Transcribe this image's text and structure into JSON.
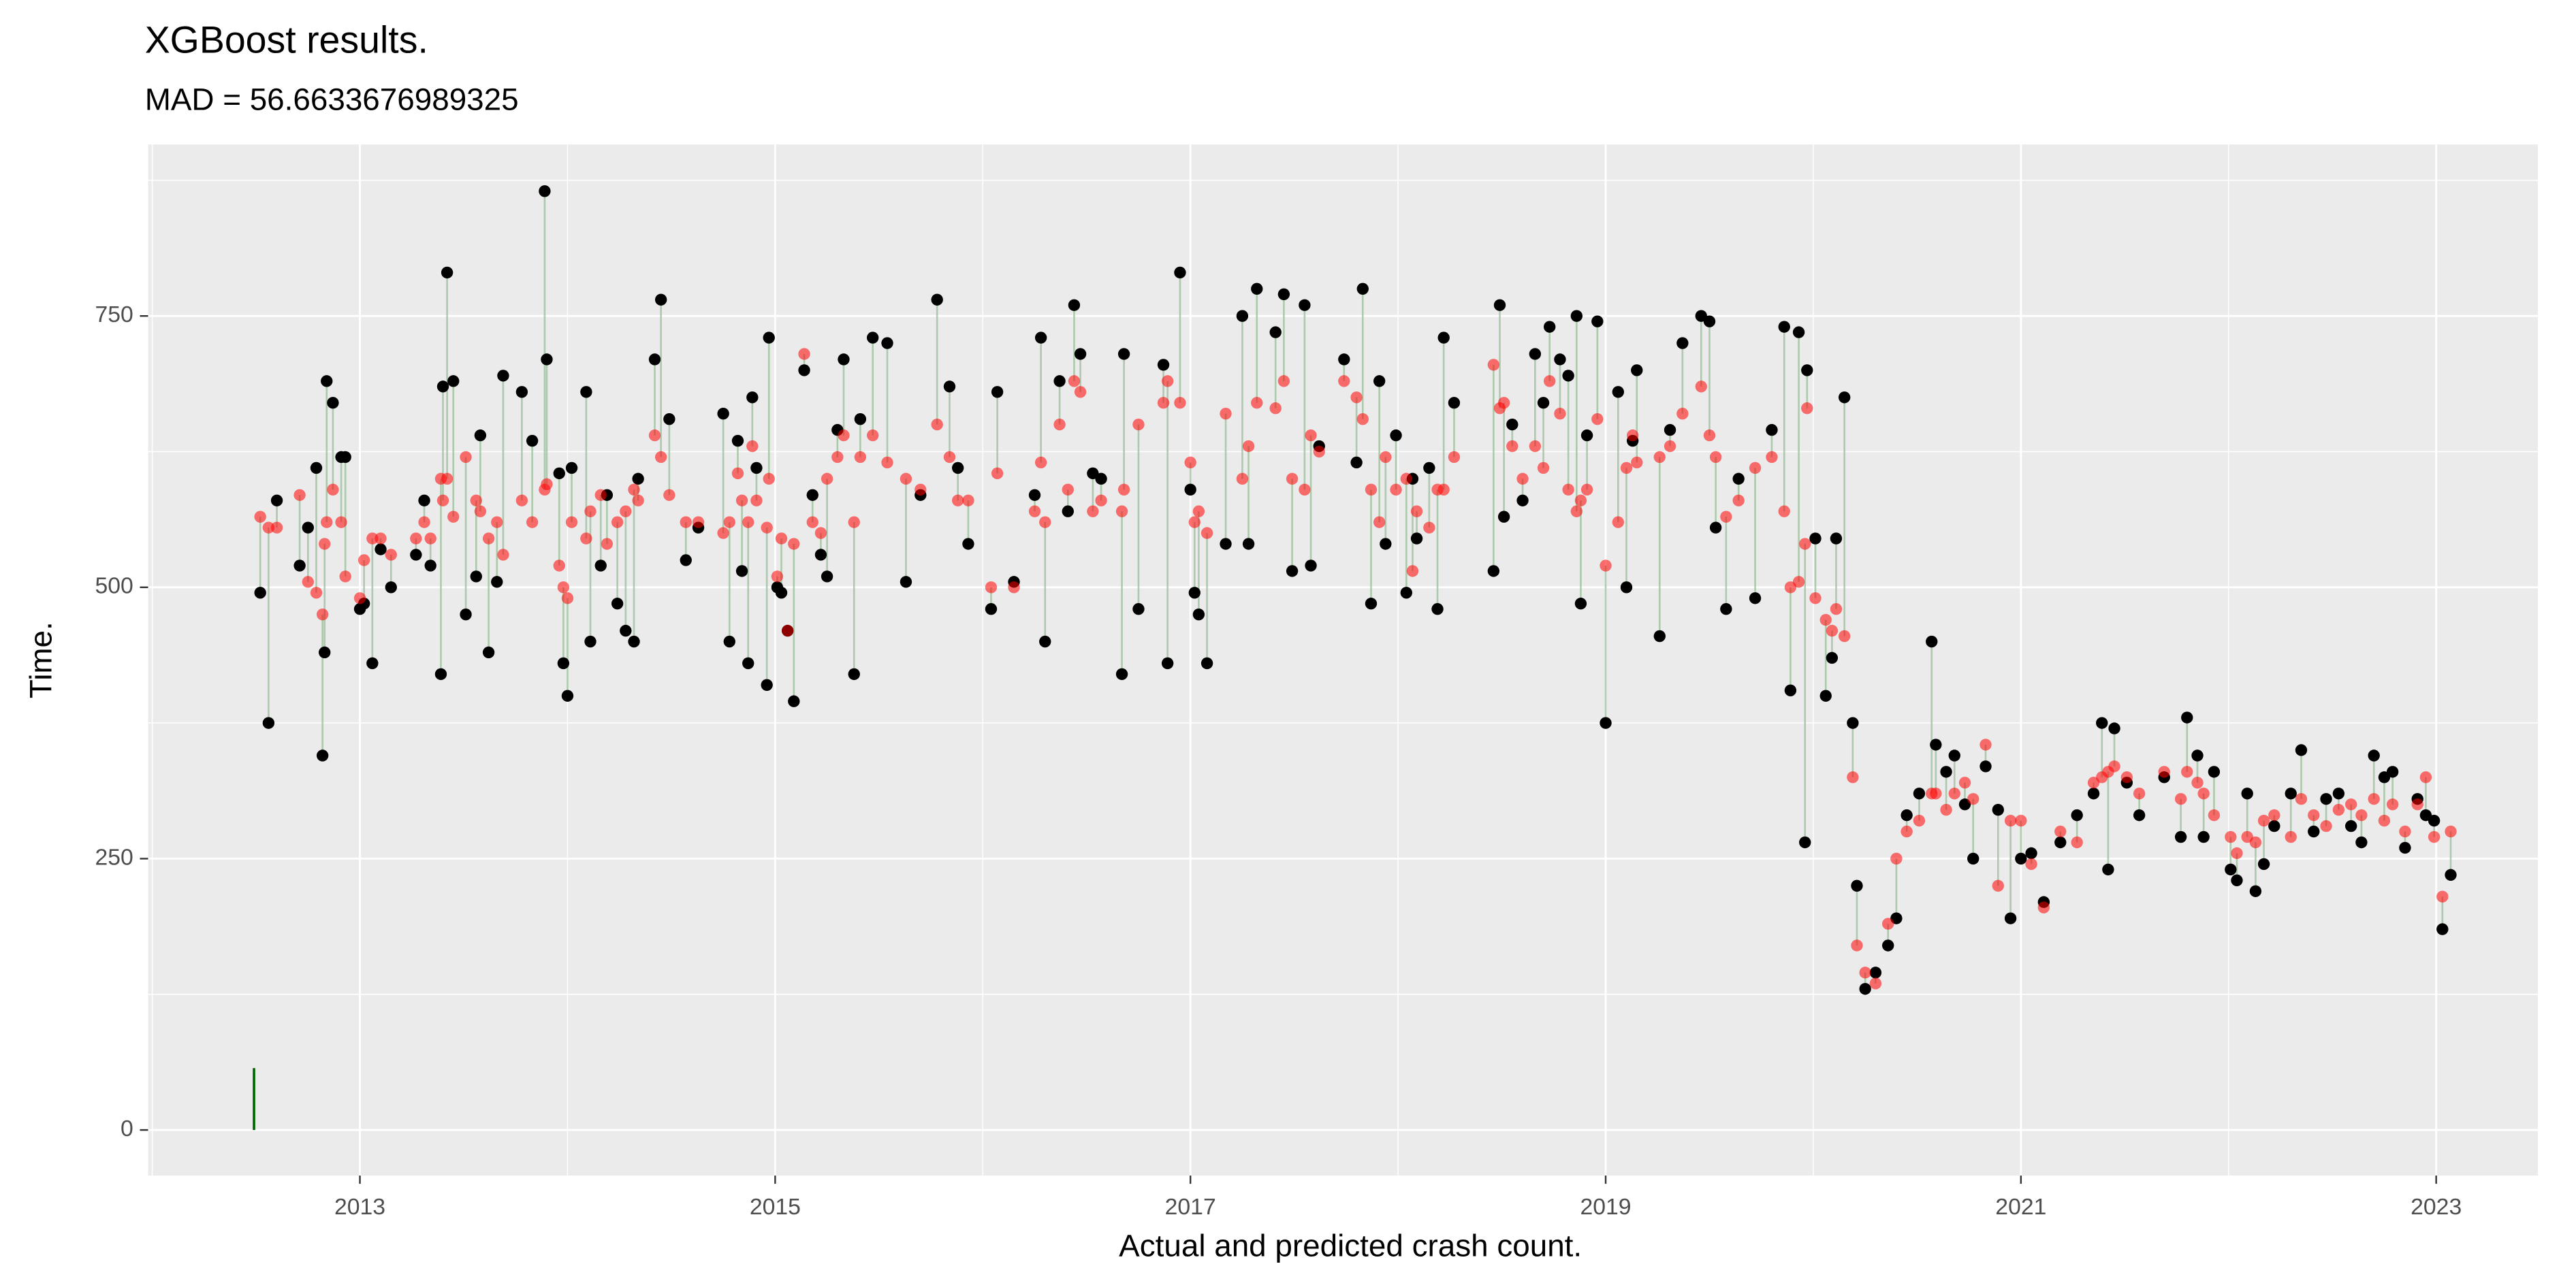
{
  "chart_data": {
    "type": "scatter",
    "title": "XGBoost results.",
    "subtitle": "MAD = 56.6633676989325",
    "xlabel": "Actual and predicted crash count.",
    "ylabel": "Time.",
    "xlim": [
      2011.98,
      2023.49
    ],
    "xticks": [
      2013,
      2015,
      2017,
      2019,
      2021,
      2023
    ],
    "ylim": [
      -42,
      908
    ],
    "yticks": [
      0,
      250,
      500,
      750
    ],
    "grid": true,
    "segment_color": "#9fc29f",
    "marker_segment": {
      "x": 2012.49,
      "y": [
        0,
        57
      ],
      "color": "#006400"
    },
    "x": [
      2012.52,
      2012.56,
      2012.6,
      2012.71,
      2012.75,
      2012.79,
      2012.82,
      2012.83,
      2012.84,
      2012.87,
      2012.91,
      2012.93,
      2013.0,
      2013.02,
      2013.06,
      2013.1,
      2013.15,
      2013.27,
      2013.31,
      2013.34,
      2013.39,
      2013.4,
      2013.42,
      2013.45,
      2013.51,
      2013.56,
      2013.58,
      2013.62,
      2013.66,
      2013.69,
      2013.78,
      2013.83,
      2013.89,
      2013.9,
      2013.96,
      2013.98,
      2014.0,
      2014.02,
      2014.09,
      2014.11,
      2014.16,
      2014.19,
      2014.24,
      2014.28,
      2014.32,
      2014.34,
      2014.42,
      2014.45,
      2014.49,
      2014.57,
      2014.63,
      2014.75,
      2014.78,
      2014.82,
      2014.84,
      2014.87,
      2014.89,
      2014.91,
      2014.96,
      2014.97,
      2015.01,
      2015.03,
      2015.06,
      2015.09,
      2015.14,
      2015.18,
      2015.22,
      2015.25,
      2015.3,
      2015.33,
      2015.38,
      2015.41,
      2015.47,
      2015.54,
      2015.63,
      2015.7,
      2015.78,
      2015.84,
      2015.88,
      2015.93,
      2016.04,
      2016.07,
      2016.15,
      2016.25,
      2016.28,
      2016.3,
      2016.37,
      2016.41,
      2016.44,
      2016.47,
      2016.53,
      2016.57,
      2016.67,
      2016.68,
      2016.75,
      2016.87,
      2016.89,
      2016.95,
      2017.0,
      2017.02,
      2017.04,
      2017.08,
      2017.17,
      2017.25,
      2017.28,
      2017.32,
      2017.41,
      2017.45,
      2017.49,
      2017.55,
      2017.58,
      2017.62,
      2017.74,
      2017.8,
      2017.83,
      2017.87,
      2017.91,
      2017.94,
      2017.99,
      2018.04,
      2018.07,
      2018.09,
      2018.15,
      2018.19,
      2018.22,
      2018.27,
      2018.46,
      2018.49,
      2018.51,
      2018.55,
      2018.6,
      2018.66,
      2018.7,
      2018.73,
      2018.78,
      2018.82,
      2018.86,
      2018.88,
      2018.91,
      2018.96,
      2019.0,
      2019.06,
      2019.1,
      2019.13,
      2019.15,
      2019.26,
      2019.31,
      2019.37,
      2019.46,
      2019.5,
      2019.53,
      2019.58,
      2019.64,
      2019.72,
      2019.8,
      2019.86,
      2019.89,
      2019.93,
      2019.96,
      2019.97,
      2020.01,
      2020.06,
      2020.09,
      2020.11,
      2020.15,
      2020.19,
      2020.21,
      2020.25,
      2020.3,
      2020.36,
      2020.4,
      2020.45,
      2020.51,
      2020.57,
      2020.59,
      2020.64,
      2020.68,
      2020.73,
      2020.77,
      2020.83,
      2020.89,
      2020.95,
      2021.0,
      2021.05,
      2021.11,
      2021.19,
      2021.27,
      2021.35,
      2021.39,
      2021.42,
      2021.45,
      2021.51,
      2021.57,
      2021.69,
      2021.77,
      2021.8,
      2021.85,
      2021.88,
      2021.93,
      2022.01,
      2022.04,
      2022.09,
      2022.13,
      2022.17,
      2022.22,
      2022.3,
      2022.35,
      2022.41,
      2022.47,
      2022.53,
      2022.59,
      2022.64,
      2022.7,
      2022.75,
      2022.79,
      2022.85,
      2022.91,
      2022.95,
      2022.99,
      2023.03,
      2023.07
    ],
    "series": [
      {
        "color": "#000000",
        "opacity": 1,
        "values": [
          495,
          375,
          580,
          520,
          555,
          610,
          345,
          440,
          690,
          670,
          620,
          620,
          480,
          485,
          430,
          535,
          500,
          530,
          580,
          520,
          420,
          685,
          790,
          690,
          475,
          510,
          640,
          440,
          505,
          695,
          680,
          635,
          865,
          710,
          605,
          430,
          400,
          610,
          680,
          450,
          520,
          585,
          485,
          460,
          450,
          600,
          710,
          765,
          655,
          525,
          555,
          660,
          450,
          635,
          515,
          430,
          675,
          610,
          410,
          730,
          500,
          495,
          460,
          395,
          700,
          585,
          530,
          510,
          645,
          710,
          420,
          655,
          730,
          725,
          505,
          585,
          765,
          685,
          610,
          540,
          480,
          680,
          505,
          585,
          730,
          450,
          690,
          570,
          760,
          715,
          605,
          600,
          420,
          715,
          480,
          705,
          430,
          790,
          590,
          495,
          475,
          430,
          540,
          750,
          540,
          775,
          735,
          770,
          515,
          760,
          520,
          630,
          710,
          615,
          775,
          485,
          690,
          540,
          640,
          495,
          600,
          545,
          610,
          480,
          730,
          670,
          515,
          760,
          565,
          650,
          580,
          715,
          670,
          740,
          710,
          695,
          750,
          485,
          640,
          745,
          375,
          680,
          500,
          635,
          700,
          455,
          645,
          725,
          750,
          745,
          555,
          480,
          600,
          490,
          645,
          740,
          405,
          735,
          265,
          700,
          545,
          400,
          435,
          545,
          675,
          375,
          225,
          130,
          145,
          170,
          195,
          290,
          310,
          450,
          355,
          330,
          345,
          300,
          250,
          335,
          295,
          195,
          250,
          255,
          210,
          265,
          290,
          310,
          375,
          240,
          370,
          320,
          290,
          325,
          270,
          380,
          345,
          270,
          330,
          240,
          230,
          310,
          220,
          245,
          280,
          310,
          350,
          275,
          305,
          310,
          280,
          265,
          345,
          325,
          330,
          260,
          305,
          290,
          285,
          185,
          235
        ]
      },
      {
        "color": "#ff0000",
        "opacity": 0.55,
        "values": [
          565,
          555,
          555,
          585,
          505,
          495,
          475,
          540,
          560,
          590,
          560,
          510,
          490,
          525,
          545,
          545,
          530,
          545,
          560,
          545,
          600,
          580,
          600,
          565,
          620,
          580,
          570,
          545,
          560,
          530,
          580,
          560,
          590,
          595,
          520,
          500,
          490,
          560,
          545,
          570,
          585,
          540,
          560,
          570,
          590,
          580,
          640,
          620,
          585,
          560,
          560,
          550,
          560,
          605,
          580,
          560,
          630,
          580,
          555,
          600,
          510,
          545,
          460,
          540,
          715,
          560,
          550,
          600,
          620,
          640,
          560,
          620,
          640,
          615,
          600,
          590,
          650,
          620,
          580,
          580,
          500,
          605,
          500,
          570,
          615,
          560,
          650,
          590,
          690,
          680,
          570,
          580,
          570,
          590,
          650,
          670,
          690,
          670,
          615,
          560,
          570,
          550,
          660,
          600,
          630,
          670,
          665,
          690,
          600,
          590,
          640,
          625,
          690,
          675,
          655,
          590,
          560,
          620,
          590,
          600,
          515,
          570,
          555,
          590,
          590,
          620,
          705,
          665,
          670,
          630,
          600,
          630,
          610,
          690,
          660,
          590,
          570,
          580,
          590,
          655,
          520,
          560,
          610,
          640,
          615,
          620,
          630,
          660,
          685,
          640,
          620,
          565,
          580,
          610,
          620,
          570,
          500,
          505,
          540,
          665,
          490,
          470,
          460,
          480,
          455,
          325,
          170,
          145,
          135,
          190,
          250,
          275,
          285,
          310,
          310,
          295,
          310,
          320,
          305,
          355,
          225,
          285,
          285,
          245,
          205,
          275,
          265,
          320,
          325,
          330,
          335,
          325,
          310,
          330,
          305,
          330,
          320,
          310,
          290,
          270,
          255,
          270,
          265,
          285,
          290,
          270,
          305,
          290,
          280,
          295,
          300,
          290,
          305,
          285,
          300,
          275,
          300,
          325,
          270,
          215,
          275
        ]
      }
    ]
  }
}
